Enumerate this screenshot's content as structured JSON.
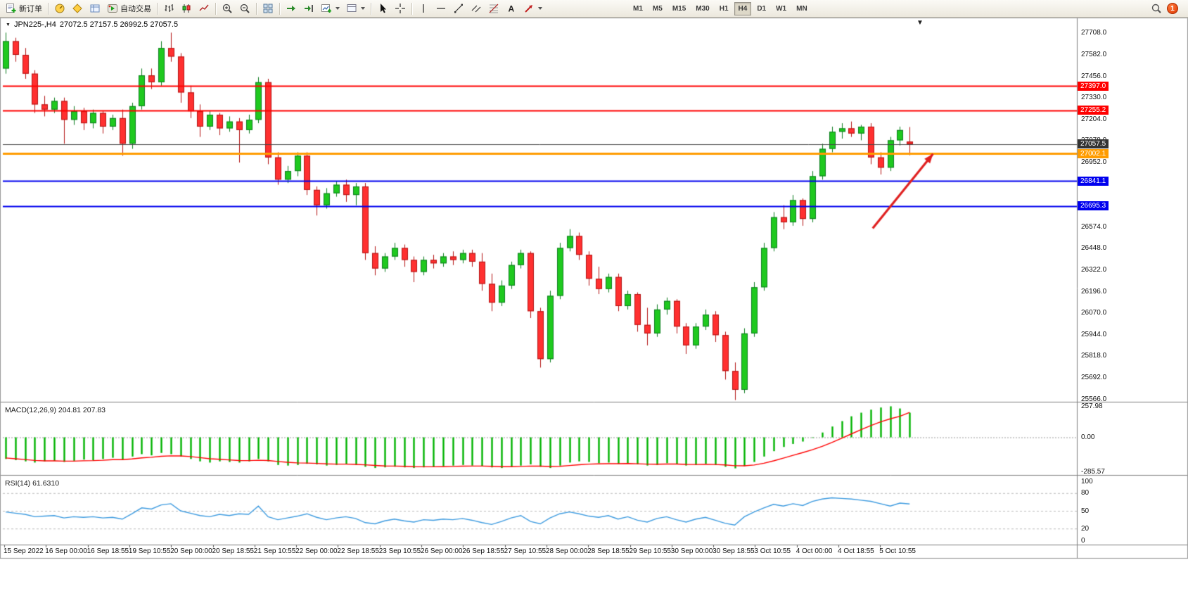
{
  "toolbar": {
    "new_order_label": "新订单",
    "autotrade_label": "自动交易",
    "timeframes": [
      "M1",
      "M5",
      "M15",
      "M30",
      "H1",
      "H4",
      "D1",
      "W1",
      "MN"
    ],
    "active_timeframe": "H4",
    "notification_count": "1"
  },
  "chart": {
    "symbol_period": "JPN225-,H4",
    "ohlc_text": "27072.5 27157.5 26992.5 27057.5",
    "macd_label": "MACD(12,26,9) 204.81 207.83",
    "rsi_label": "RSI(14) 61.6310"
  },
  "chart_data": [
    {
      "type": "candlestick",
      "symbol": "JPN225-",
      "timeframe": "H4",
      "last_ohlc": {
        "open": 27072.5,
        "high": 27157.5,
        "low": 26992.5,
        "close": 27057.5
      },
      "up_color": "#1fc91f",
      "down_color": "#ff3030",
      "price_axis": {
        "plot_max": 27794,
        "plot_min": 25550,
        "ticks": [
          "27708.0",
          "27582.0",
          "27456.0",
          "27330.0",
          "27204.0",
          "27078.0",
          "26952.0",
          "26826.0",
          "26700.0",
          "26574.0",
          "26448.0",
          "26322.0",
          "26196.0",
          "26070.0",
          "25944.0",
          "25818.0",
          "25692.0",
          "25566.0"
        ]
      },
      "time_axis": [
        "15 Sep 2022",
        "16 Sep 00:00",
        "16 Sep 18:55",
        "19 Sep 10:55",
        "20 Sep 00:00",
        "20 Sep 18:55",
        "21 Sep 10:55",
        "22 Sep 00:00",
        "22 Sep 18:55",
        "23 Sep 10:55",
        "26 Sep 00:00",
        "26 Sep 18:55",
        "27 Sep 10:55",
        "28 Sep 00:00",
        "28 Sep 18:55",
        "29 Sep 10:55",
        "30 Sep 00:00",
        "30 Sep 18:55",
        "3 Oct 10:55",
        "4 Oct 00:00",
        "4 Oct 18:55",
        "5 Oct 10:55"
      ],
      "hlines": [
        {
          "price": 27397.0,
          "label": "27397.0",
          "color": "#ff0000",
          "width": 2,
          "role": "resistance"
        },
        {
          "price": 27255.2,
          "label": "27255.2",
          "color": "#ff0000",
          "width": 2,
          "role": "resistance"
        },
        {
          "price": 27057.5,
          "label": "27057.5",
          "color": "#444444",
          "width": 1,
          "role": "bid"
        },
        {
          "price": 27002.1,
          "label": "27002.1",
          "color": "#ff9c00",
          "width": 3,
          "role": "pivot"
        },
        {
          "price": 26841.1,
          "label": "26841.1",
          "color": "#0000ee",
          "width": 2,
          "role": "support"
        },
        {
          "price": 26695.3,
          "label": "26695.3",
          "color": "#0000ee",
          "width": 2,
          "role": "support"
        }
      ],
      "arrow": {
        "from_bar": 89.2,
        "from_price": 26565,
        "to_bar": 95.4,
        "to_price": 27000,
        "color": "#e02020"
      },
      "candles": [
        [
          27500,
          27710,
          27470,
          27660
        ],
        [
          27660,
          27680,
          27540,
          27580
        ],
        [
          27580,
          27620,
          27440,
          27470
        ],
        [
          27470,
          27490,
          27240,
          27290
        ],
        [
          27290,
          27340,
          27220,
          27260
        ],
        [
          27260,
          27330,
          27240,
          27310
        ],
        [
          27310,
          27330,
          27060,
          27200
        ],
        [
          27200,
          27280,
          27170,
          27250
        ],
        [
          27250,
          27270,
          27140,
          27180
        ],
        [
          27180,
          27260,
          27150,
          27240
        ],
        [
          27240,
          27250,
          27120,
          27160
        ],
        [
          27160,
          27230,
          27140,
          27210
        ],
        [
          27210,
          27260,
          26990,
          27060
        ],
        [
          27060,
          27300,
          27030,
          27280
        ],
        [
          27280,
          27500,
          27260,
          27460
        ],
        [
          27460,
          27500,
          27380,
          27420
        ],
        [
          27420,
          27660,
          27400,
          27620
        ],
        [
          27620,
          27710,
          27540,
          27570
        ],
        [
          27570,
          27590,
          27300,
          27360
        ],
        [
          27360,
          27400,
          27210,
          27250
        ],
        [
          27250,
          27290,
          27100,
          27160
        ],
        [
          27160,
          27250,
          27140,
          27230
        ],
        [
          27230,
          27240,
          27110,
          27150
        ],
        [
          27150,
          27220,
          27130,
          27190
        ],
        [
          27190,
          27210,
          26950,
          27140
        ],
        [
          27140,
          27230,
          27120,
          27200
        ],
        [
          27200,
          27450,
          27180,
          27420
        ],
        [
          27420,
          27440,
          26940,
          26980
        ],
        [
          26980,
          27010,
          26820,
          26850
        ],
        [
          26850,
          26930,
          26830,
          26900
        ],
        [
          26900,
          27010,
          26870,
          26990
        ],
        [
          26990,
          27010,
          26760,
          26790
        ],
        [
          26790,
          26810,
          26640,
          26700
        ],
        [
          26700,
          26800,
          26680,
          26770
        ],
        [
          26770,
          26840,
          26750,
          26820
        ],
        [
          26820,
          26850,
          26720,
          26760
        ],
        [
          26760,
          26830,
          26700,
          26810
        ],
        [
          26810,
          26830,
          26380,
          26420
        ],
        [
          26420,
          26460,
          26290,
          26330
        ],
        [
          26330,
          26420,
          26310,
          26400
        ],
        [
          26400,
          26480,
          26380,
          26450
        ],
        [
          26450,
          26470,
          26340,
          26380
        ],
        [
          26380,
          26400,
          26250,
          26310
        ],
        [
          26310,
          26400,
          26290,
          26380
        ],
        [
          26380,
          26410,
          26330,
          26360
        ],
        [
          26360,
          26420,
          26340,
          26400
        ],
        [
          26400,
          26430,
          26350,
          26380
        ],
        [
          26380,
          26440,
          26360,
          26420
        ],
        [
          26420,
          26440,
          26340,
          26370
        ],
        [
          26370,
          26420,
          26200,
          26240
        ],
        [
          26240,
          26300,
          26080,
          26130
        ],
        [
          26130,
          26260,
          26110,
          26230
        ],
        [
          26230,
          26370,
          26210,
          26350
        ],
        [
          26350,
          26440,
          26330,
          26420
        ],
        [
          26420,
          26430,
          26040,
          26080
        ],
        [
          26080,
          26100,
          25750,
          25800
        ],
        [
          25800,
          26200,
          25780,
          26170
        ],
        [
          26170,
          26480,
          26150,
          26450
        ],
        [
          26450,
          26560,
          26430,
          26520
        ],
        [
          26520,
          26540,
          26380,
          26410
        ],
        [
          26410,
          26430,
          26230,
          26270
        ],
        [
          26270,
          26340,
          26180,
          26210
        ],
        [
          26210,
          26300,
          26190,
          26280
        ],
        [
          26280,
          26300,
          26080,
          26110
        ],
        [
          26110,
          26200,
          26090,
          26180
        ],
        [
          26180,
          26190,
          25960,
          26000
        ],
        [
          26000,
          26100,
          25880,
          25950
        ],
        [
          25950,
          26120,
          25930,
          26090
        ],
        [
          26090,
          26160,
          26060,
          26140
        ],
        [
          26140,
          26150,
          25950,
          25990
        ],
        [
          25990,
          26010,
          25830,
          25880
        ],
        [
          25880,
          26010,
          25860,
          25990
        ],
        [
          25990,
          26090,
          25970,
          26060
        ],
        [
          26060,
          26080,
          25900,
          25940
        ],
        [
          25940,
          25960,
          25680,
          25730
        ],
        [
          25730,
          25780,
          25560,
          25620
        ],
        [
          25620,
          25980,
          25600,
          25950
        ],
        [
          25950,
          26250,
          25930,
          26220
        ],
        [
          26220,
          26480,
          26200,
          26450
        ],
        [
          26450,
          26660,
          26430,
          26630
        ],
        [
          26630,
          26700,
          26560,
          26600
        ],
        [
          26600,
          26760,
          26580,
          26730
        ],
        [
          26730,
          26740,
          26580,
          26620
        ],
        [
          26620,
          26900,
          26600,
          26870
        ],
        [
          26870,
          27060,
          26850,
          27030
        ],
        [
          27030,
          27160,
          27010,
          27130
        ],
        [
          27130,
          27180,
          27090,
          27150
        ],
        [
          27150,
          27190,
          27100,
          27120
        ],
        [
          27120,
          27170,
          27080,
          27160
        ],
        [
          27160,
          27180,
          26940,
          26980
        ],
        [
          26980,
          27010,
          26880,
          26920
        ],
        [
          26920,
          27100,
          26900,
          27080
        ],
        [
          27080,
          27160,
          27050,
          27140
        ],
        [
          27072.5,
          27157.5,
          26992.5,
          27057.5
        ]
      ]
    },
    {
      "type": "macd",
      "label": "MACD(12,26,9) 204.81 207.83",
      "params": "12,26,9",
      "current_macd": 204.81,
      "current_signal": 207.83,
      "hist_color": "#00b300",
      "signal_color": "#ff0000",
      "scale": {
        "max_label": "257.98",
        "zero_label": "0.00",
        "min_label": "-285.57",
        "plot_max": 290,
        "plot_min": -313
      },
      "histogram": [
        -180,
        -190,
        -200,
        -210,
        -200,
        -195,
        -205,
        -195,
        -185,
        -190,
        -180,
        -170,
        -185,
        -160,
        -140,
        -150,
        -130,
        -140,
        -160,
        -180,
        -200,
        -210,
        -200,
        -205,
        -210,
        -200,
        -180,
        -200,
        -230,
        -235,
        -230,
        -220,
        -225,
        -235,
        -230,
        -225,
        -230,
        -245,
        -255,
        -250,
        -245,
        -250,
        -255,
        -250,
        -245,
        -240,
        -235,
        -230,
        -235,
        -240,
        -250,
        -255,
        -245,
        -235,
        -225,
        -245,
        -255,
        -235,
        -210,
        -200,
        -205,
        -215,
        -210,
        -220,
        -215,
        -225,
        -235,
        -230,
        -215,
        -225,
        -235,
        -230,
        -220,
        -230,
        -245,
        -258,
        -240,
        -205,
        -160,
        -115,
        -80,
        -55,
        -35,
        -5,
        40,
        90,
        135,
        175,
        205,
        230,
        248,
        258,
        240,
        204.81
      ],
      "signal": [
        -172,
        -178,
        -185,
        -192,
        -196,
        -196,
        -198,
        -198,
        -195,
        -194,
        -191,
        -186,
        -186,
        -180,
        -171,
        -166,
        -158,
        -154,
        -155,
        -160,
        -169,
        -178,
        -183,
        -188,
        -193,
        -194,
        -191,
        -193,
        -201,
        -208,
        -213,
        -214,
        -217,
        -221,
        -223,
        -223,
        -225,
        -229,
        -234,
        -238,
        -239,
        -241,
        -244,
        -245,
        -245,
        -244,
        -242,
        -240,
        -239,
        -239,
        -241,
        -244,
        -244,
        -242,
        -239,
        -240,
        -243,
        -241,
        -235,
        -228,
        -223,
        -221,
        -219,
        -219,
        -218,
        -220,
        -223,
        -224,
        -222,
        -222,
        -225,
        -226,
        -225,
        -226,
        -230,
        -236,
        -237,
        -230,
        -216,
        -196,
        -173,
        -150,
        -127,
        -103,
        -75,
        -43,
        -8,
        28,
        64,
        98,
        128,
        154,
        175,
        207.83
      ]
    },
    {
      "type": "rsi",
      "label": "RSI(14) 61.6310",
      "period": 14,
      "current": 61.631,
      "color": "#3d9be0",
      "scale_labels": [
        "100",
        "80",
        "50",
        "20",
        "0"
      ],
      "levels": [
        80,
        50,
        20
      ],
      "values": [
        48,
        46,
        44,
        40,
        41,
        42,
        38,
        40,
        39,
        40,
        38,
        39,
        36,
        45,
        55,
        53,
        60,
        62,
        50,
        46,
        42,
        40,
        44,
        42,
        45,
        44,
        58,
        40,
        35,
        38,
        41,
        45,
        39,
        35,
        38,
        40,
        37,
        30,
        28,
        33,
        36,
        33,
        31,
        35,
        34,
        36,
        35,
        37,
        34,
        30,
        27,
        32,
        38,
        42,
        32,
        28,
        38,
        45,
        48,
        45,
        41,
        39,
        42,
        36,
        40,
        34,
        31,
        37,
        40,
        35,
        31,
        36,
        39,
        34,
        29,
        26,
        40,
        48,
        55,
        61,
        58,
        62,
        59,
        66,
        70,
        72,
        71,
        70,
        68,
        66,
        62,
        58,
        63,
        61.63
      ]
    }
  ]
}
